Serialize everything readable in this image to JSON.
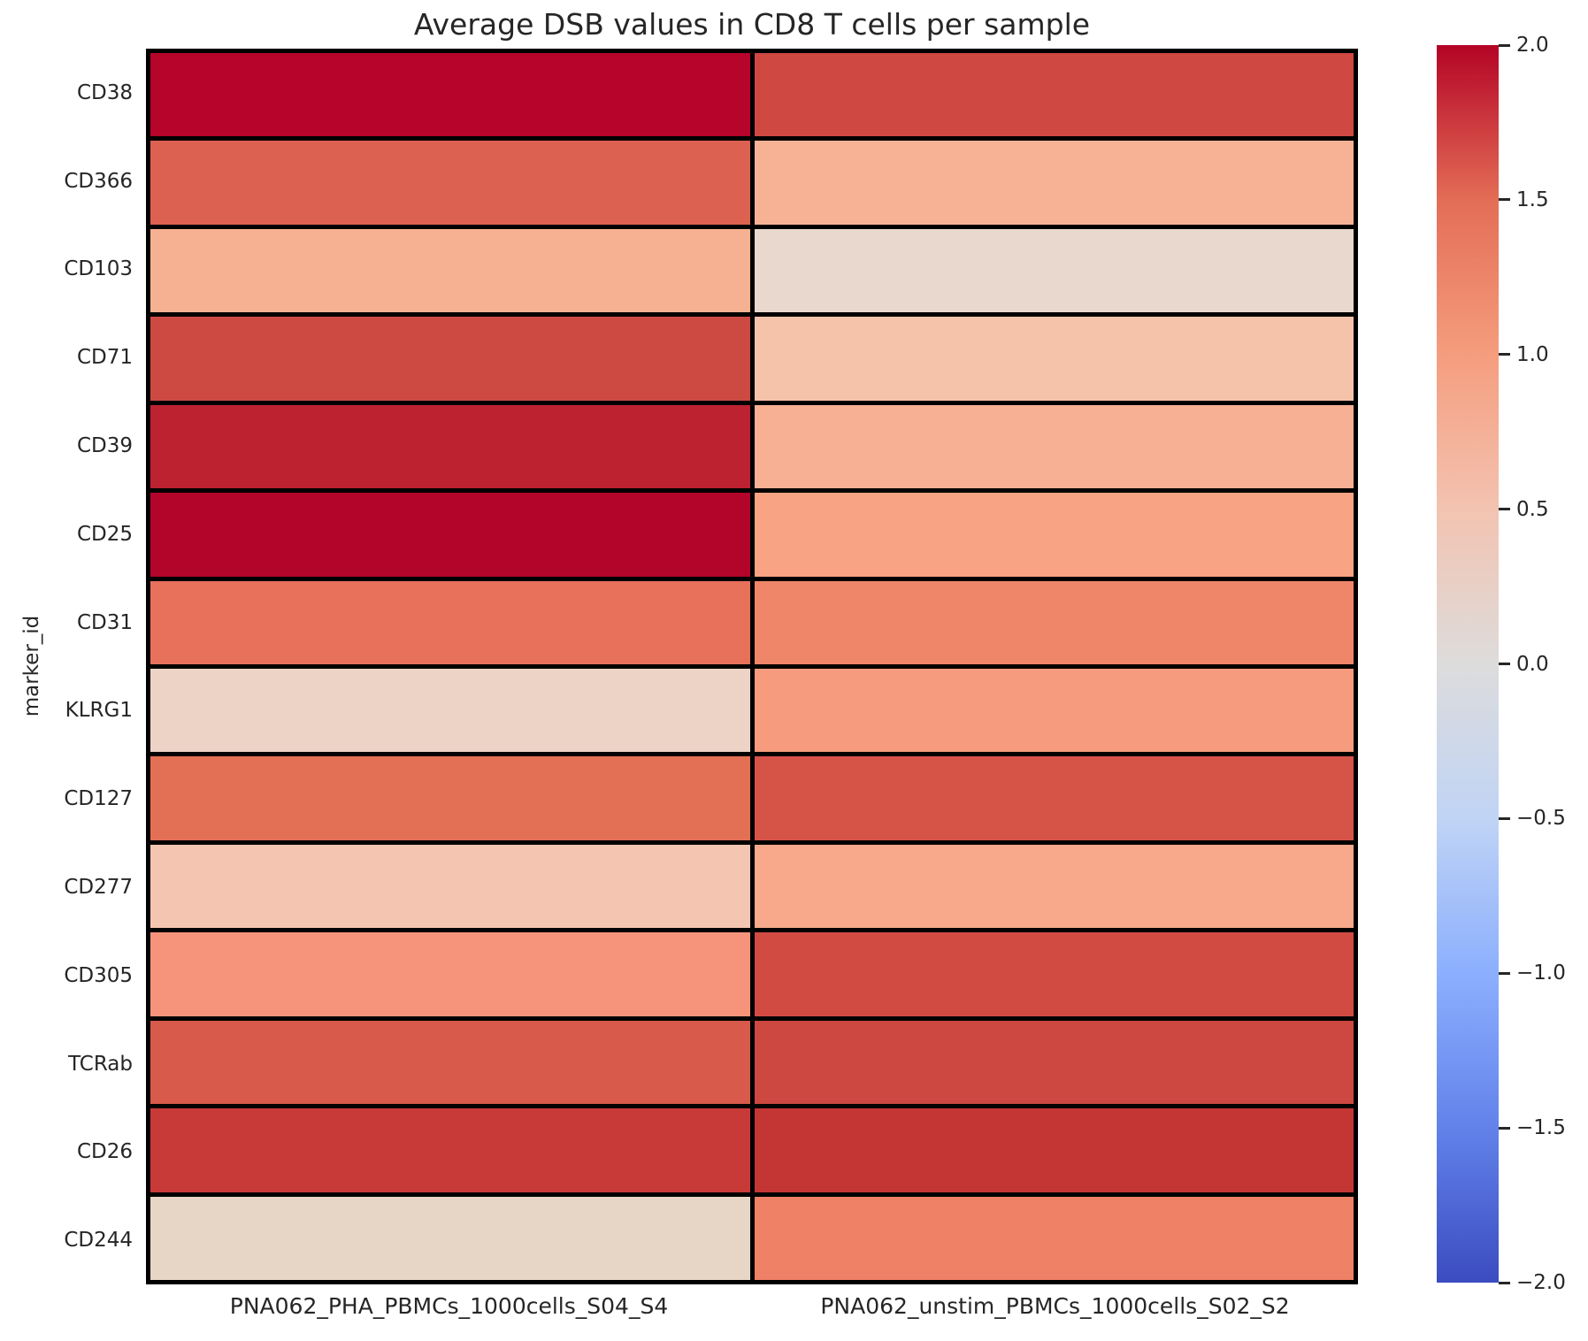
{
  "title": "Average DSB values in CD8 T cells per sample",
  "colors": {
    "background": "#ffffff",
    "text": "#262626",
    "cell_border": "#000000"
  },
  "chart_data": {
    "type": "heatmap",
    "title": "Average DSB values in CD8 T cells per sample",
    "xlabel": "",
    "ylabel": "marker_id",
    "rows": [
      "CD38",
      "CD366",
      "CD103",
      "CD71",
      "CD39",
      "CD25",
      "CD31",
      "KLRG1",
      "CD127",
      "CD277",
      "CD305",
      "TCRab",
      "CD26",
      "CD244"
    ],
    "columns": [
      "PNA062_PHA_PBMCs_1000cells_S04_S4",
      "PNA062_unstim_PBMCs_1000cells_S02_S2"
    ],
    "series": [
      {
        "name": "PNA062_PHA_PBMCs_1000cells_S04_S4",
        "values": [
          2.0,
          1.55,
          0.75,
          1.7,
          1.85,
          2.0,
          1.4,
          0.3,
          1.45,
          0.45,
          1.0,
          1.6,
          1.8,
          0.3
        ],
        "cell_colors": [
          "#b6042a",
          "#dd6150",
          "#f6b192",
          "#cd4a42",
          "#bd2231",
          "#b3042a",
          "#e7715b",
          "#ecd3c6",
          "#e36f55",
          "#f4c5b0",
          "#f6947b",
          "#d75a4b",
          "#c83a38",
          "#e7d5c5"
        ]
      },
      {
        "name": "PNA062_unstim_PBMCs_1000cells_S02_S2",
        "values": [
          1.7,
          0.7,
          0.2,
          0.5,
          0.75,
          0.9,
          1.25,
          1.0,
          1.6,
          0.85,
          1.65,
          1.7,
          1.8,
          1.3
        ],
        "cell_colors": [
          "#d04842",
          "#f7b295",
          "#e8d8cd",
          "#f5c3aa",
          "#f7b093",
          "#f8a383",
          "#ef8569",
          "#f69b7e",
          "#d65348",
          "#f8a98b",
          "#d14b43",
          "#cc4841",
          "#c33634",
          "#ef8166"
        ]
      }
    ],
    "colormap": "coolwarm",
    "color_range": [
      -2.0,
      2.0
    ],
    "grid": true,
    "legend_position": "right-colorbar",
    "colorbar": {
      "ticks": [
        "2.0",
        "1.5",
        "1.0",
        "0.5",
        "0.0",
        "−0.5",
        "−1.0",
        "−1.5",
        "−2.0"
      ],
      "gradient": [
        "#b40426",
        "#e36d56",
        "#f59d7e",
        "#f3c3b1",
        "#dddcdc",
        "#c0d4f5",
        "#8caffe",
        "#6282ea",
        "#3b4cc0"
      ]
    }
  }
}
